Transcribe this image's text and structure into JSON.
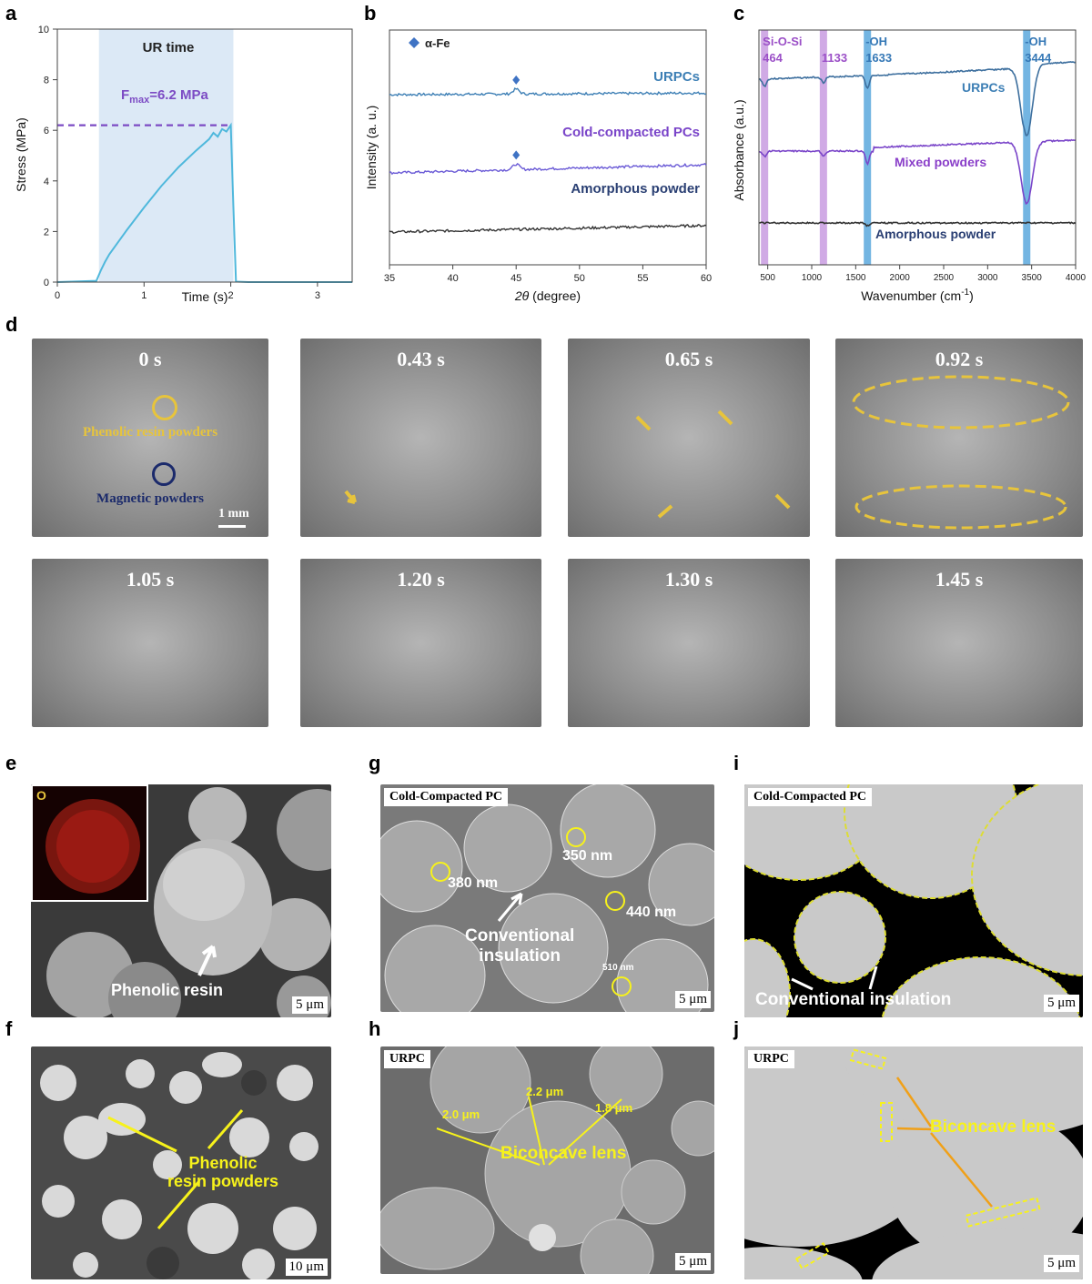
{
  "panel_letters": [
    "a",
    "b",
    "c",
    "d",
    "e",
    "f",
    "g",
    "h",
    "i",
    "j"
  ],
  "chart_data": [
    {
      "panel": "a",
      "type": "line",
      "xlabel": "Time (s)",
      "ylabel": "Stress (MPa)",
      "xlim": [
        0,
        3.4
      ],
      "ylim": [
        0,
        10
      ],
      "xticks": [
        0,
        1,
        2,
        3
      ],
      "yticks": [
        0,
        2,
        4,
        6,
        8,
        10
      ],
      "shaded_region": {
        "label": "UR time",
        "x": [
          0.48,
          2.03
        ]
      },
      "annotation": {
        "text_main": "F",
        "text_sub": "max",
        "text_rest": "=6.2 MPa",
        "y": 6.2
      },
      "color": "#4fb8dc",
      "x": [
        0,
        0.45,
        0.5,
        0.55,
        0.6,
        0.8,
        1.0,
        1.2,
        1.4,
        1.6,
        1.75,
        1.8,
        1.85,
        1.9,
        1.95,
        2.0,
        2.03,
        2.06,
        2.2,
        2.5,
        3.0,
        3.4
      ],
      "y": [
        0,
        0.05,
        0.45,
        0.8,
        1.1,
        2.05,
        2.95,
        3.8,
        4.55,
        5.2,
        5.65,
        5.9,
        5.75,
        6.05,
        5.95,
        6.2,
        3.0,
        0.02,
        0,
        0,
        0,
        0
      ]
    },
    {
      "panel": "b",
      "type": "line",
      "xlabel_italic": "2θ",
      "xlabel_rest": " (degree)",
      "ylabel": "Intensity (a. u.)",
      "xlim": [
        35,
        60
      ],
      "xticks": [
        35,
        40,
        45,
        50,
        55,
        60
      ],
      "legend": {
        "marker": "diamond",
        "label": "α-Fe",
        "color": "#3f73c4"
      },
      "peak_x": 45,
      "series": [
        {
          "name": "URPCs",
          "color": "#3d7fb5",
          "label_color": "#3d7fb5",
          "base": 0.78,
          "slope": 0.03,
          "peak": 0.09
        },
        {
          "name": "Cold-compacted PCs",
          "color": "#6a5ad6",
          "label_color": "#7a45c9",
          "base": 0.35,
          "slope": 0.15,
          "peak": 0.1
        },
        {
          "name": "Amorphous powder",
          "color": "#333333",
          "label_color": "#2a3f73",
          "base": 0.0,
          "slope": 0.12,
          "peak": 0
        }
      ]
    },
    {
      "panel": "c",
      "type": "line",
      "xlabel": "Wavenumber (cm",
      "xlabel_sup": "-1",
      "xlabel_end": ")",
      "ylabel": "Absorbance (a.u.)",
      "xlim": [
        400,
        4000
      ],
      "xticks": [
        500,
        1000,
        1500,
        2000,
        2500,
        3000,
        3500,
        4000
      ],
      "bands": [
        {
          "name": "Si-O-Si",
          "value": "464",
          "x": 464,
          "color": "#c89be0",
          "text_color": "#9b4fc7"
        },
        {
          "name": "",
          "value": "1133",
          "x": 1133,
          "color": "#c89be0",
          "text_color": "#9b4fc7"
        },
        {
          "name": "-OH",
          "value": "1633",
          "x": 1633,
          "color": "#5aa8dd",
          "text_color": "#3578b6"
        },
        {
          "name": "-OH",
          "value": "3444",
          "x": 3444,
          "color": "#5aa8dd",
          "text_color": "#3578b6"
        }
      ],
      "series": [
        {
          "name": "URPCs",
          "color": "#3d6f9e",
          "label_color": "#3d7fb5"
        },
        {
          "name": "Mixed powders",
          "color": "#7a45c9",
          "label_color": "#8a3fc9"
        },
        {
          "name": "Amorphous powder",
          "color": "#333333",
          "label_color": "#2a3f73"
        }
      ]
    }
  ],
  "panel_d": {
    "frames": [
      "0 s",
      "0.43 s",
      "0.65 s",
      "0.92 s",
      "1.05 s",
      "1.20 s",
      "1.30 s",
      "1.45 s"
    ],
    "legend_yellow": "Phenolic resin powders",
    "legend_blue": "Magnetic powders",
    "scale": "1 mm"
  },
  "panel_e": {
    "label": "Phenolic resin",
    "map_element": "O",
    "scale": "5 μm"
  },
  "panel_f": {
    "label_line1": "Phenolic",
    "label_line2": "resin powders",
    "scale": "10 μm"
  },
  "panel_g": {
    "tag": "Cold-Compacted PC",
    "sizes": [
      "380 nm",
      "350 nm",
      "440 nm",
      "510 nm"
    ],
    "label_line1": "Conventional",
    "label_line2": "insulation",
    "scale": "5 μm"
  },
  "panel_h": {
    "tag": "URPC",
    "sizes": [
      "2.2 μm",
      "2.0 μm",
      "1.8 μm"
    ],
    "label": "Biconcave lens",
    "scale": "5 μm"
  },
  "panel_i": {
    "tag": "Cold-Compacted PC",
    "label": "Conventional insulation",
    "scale": "5 μm"
  },
  "panel_j": {
    "tag": "URPC",
    "label": "Biconcave lens",
    "scale": "5 μm"
  }
}
